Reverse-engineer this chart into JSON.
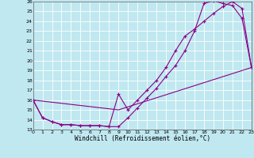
{
  "xlabel": "Windchill (Refroidissement éolien,°C)",
  "background_color": "#c0e8f0",
  "line_color": "#880088",
  "grid_color": "#ffffff",
  "xlim": [
    0,
    23
  ],
  "ylim": [
    13,
    26
  ],
  "xticks": [
    0,
    1,
    2,
    3,
    4,
    5,
    6,
    7,
    8,
    9,
    10,
    11,
    12,
    13,
    14,
    15,
    16,
    17,
    18,
    19,
    20,
    21,
    22,
    23
  ],
  "yticks": [
    13,
    14,
    15,
    16,
    17,
    18,
    19,
    20,
    21,
    22,
    23,
    24,
    25,
    26
  ],
  "line1_x": [
    0,
    1,
    2,
    3,
    4,
    5,
    6,
    7,
    8,
    9,
    10,
    11,
    12,
    13,
    14,
    15,
    16,
    17,
    18,
    19,
    20,
    21,
    22,
    23
  ],
  "line1_y": [
    16.0,
    14.2,
    13.8,
    13.5,
    13.5,
    13.4,
    13.4,
    13.4,
    13.3,
    16.6,
    15.0,
    16.0,
    17.0,
    18.0,
    19.3,
    21.0,
    22.5,
    23.2,
    24.0,
    24.8,
    25.5,
    26.0,
    25.3,
    19.3
  ],
  "line2_x": [
    0,
    1,
    2,
    3,
    4,
    5,
    6,
    7,
    8,
    9,
    10,
    11,
    12,
    13,
    14,
    15,
    16,
    17,
    18,
    19,
    20,
    21,
    22,
    23
  ],
  "line2_y": [
    16.0,
    14.2,
    13.8,
    13.5,
    13.5,
    13.4,
    13.4,
    13.4,
    13.3,
    13.3,
    14.2,
    15.2,
    16.2,
    17.2,
    18.4,
    19.5,
    21.0,
    23.0,
    25.8,
    26.1,
    25.8,
    25.6,
    24.3,
    19.3
  ],
  "line3_x": [
    0,
    9,
    23
  ],
  "line3_y": [
    16.0,
    15.0,
    19.3
  ]
}
